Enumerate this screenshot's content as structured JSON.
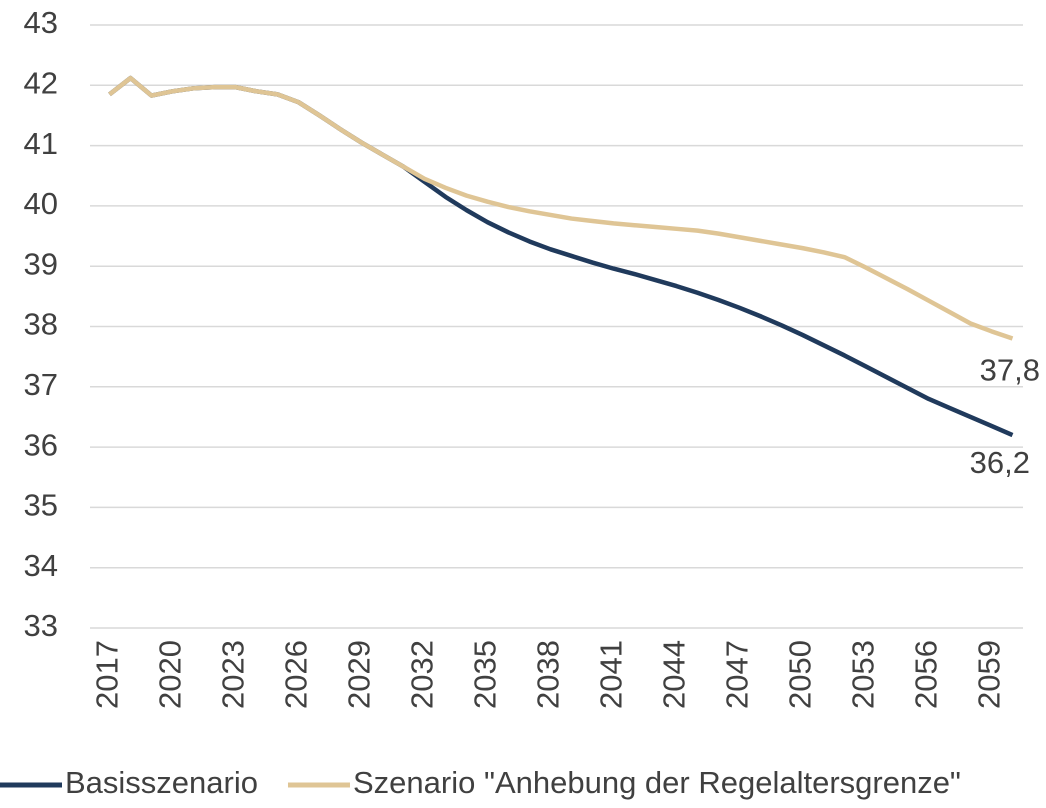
{
  "chart_data": {
    "type": "line",
    "x": [
      2017,
      2018,
      2019,
      2020,
      2021,
      2022,
      2023,
      2024,
      2025,
      2026,
      2027,
      2028,
      2029,
      2030,
      2031,
      2032,
      2033,
      2034,
      2035,
      2036,
      2037,
      2038,
      2039,
      2040,
      2041,
      2042,
      2043,
      2044,
      2045,
      2046,
      2047,
      2048,
      2049,
      2050,
      2051,
      2052,
      2053,
      2054,
      2055,
      2056,
      2057,
      2058,
      2059,
      2060
    ],
    "xlim": [
      2016.5,
      2060.5
    ],
    "xticks": [
      2017,
      2020,
      2023,
      2026,
      2029,
      2032,
      2035,
      2038,
      2041,
      2044,
      2047,
      2050,
      2053,
      2056,
      2059
    ],
    "ylim": [
      33,
      43
    ],
    "yticks": [
      33,
      34,
      35,
      36,
      37,
      38,
      39,
      40,
      41,
      42,
      43
    ],
    "grid": true,
    "legend": "bottom",
    "series": [
      {
        "name": "Basisszenario",
        "color": "#203a5c",
        "values": [
          41.85,
          42.12,
          41.83,
          41.9,
          41.95,
          41.97,
          41.97,
          41.9,
          41.85,
          41.72,
          41.5,
          41.27,
          41.05,
          40.85,
          40.65,
          40.4,
          40.15,
          39.93,
          39.73,
          39.56,
          39.41,
          39.28,
          39.17,
          39.06,
          38.96,
          38.87,
          38.77,
          38.67,
          38.56,
          38.44,
          38.31,
          38.17,
          38.02,
          37.86,
          37.69,
          37.52,
          37.34,
          37.16,
          36.98,
          36.8,
          36.65,
          36.5,
          36.35,
          36.2
        ],
        "value_labels": [
          null,
          null,
          null,
          null,
          null,
          null,
          null,
          null,
          null,
          null,
          null,
          null,
          null,
          null,
          null,
          null,
          null,
          null,
          null,
          null,
          null,
          null,
          null,
          null,
          null,
          null,
          null,
          null,
          null,
          null,
          null,
          null,
          null,
          null,
          null,
          null,
          null,
          null,
          null,
          null,
          null,
          null,
          null,
          "36,2"
        ]
      },
      {
        "name": "Szenario \"Anhebung der Regelaltersgrenze\"",
        "color": "#dfc595",
        "values": [
          41.85,
          42.12,
          41.83,
          41.9,
          41.95,
          41.97,
          41.97,
          41.9,
          41.85,
          41.72,
          41.5,
          41.27,
          41.05,
          40.85,
          40.65,
          40.45,
          40.3,
          40.17,
          40.07,
          39.98,
          39.91,
          39.85,
          39.79,
          39.75,
          39.71,
          39.68,
          39.65,
          39.62,
          39.59,
          39.54,
          39.48,
          39.42,
          39.36,
          39.3,
          39.23,
          39.15,
          38.98,
          38.8,
          38.62,
          38.43,
          38.24,
          38.05,
          37.92,
          37.8
        ],
        "value_labels": [
          null,
          null,
          null,
          null,
          null,
          null,
          null,
          null,
          null,
          null,
          null,
          null,
          null,
          null,
          null,
          null,
          null,
          null,
          null,
          null,
          null,
          null,
          null,
          null,
          null,
          null,
          null,
          null,
          null,
          null,
          null,
          null,
          null,
          null,
          null,
          null,
          null,
          null,
          null,
          null,
          null,
          null,
          null,
          "37,8"
        ]
      }
    ]
  }
}
